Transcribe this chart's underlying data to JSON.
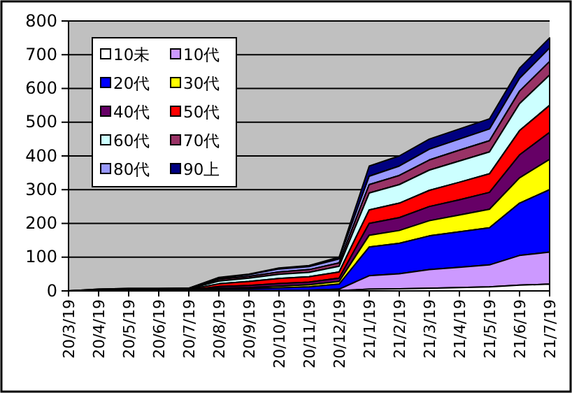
{
  "chart_data": {
    "type": "area",
    "stacked": true,
    "categories": [
      "20/3/19",
      "20/4/19",
      "20/5/19",
      "20/6/19",
      "20/7/19",
      "20/8/19",
      "20/9/19",
      "20/10/19",
      "20/11/19",
      "20/12/19",
      "21/1/19",
      "21/2/19",
      "21/3/19",
      "21/4/19",
      "21/5/19",
      "21/6/19",
      "21/7/19"
    ],
    "series": [
      {
        "name": "10未",
        "color": "#ffffff",
        "values": [
          0,
          0,
          0,
          0,
          0,
          0,
          0,
          0,
          0,
          1,
          5,
          6,
          8,
          10,
          12,
          17,
          20
        ]
      },
      {
        "name": "10代",
        "color": "#cc99ff",
        "values": [
          0,
          0,
          0,
          0,
          0,
          1,
          1,
          1,
          2,
          4,
          40,
          45,
          55,
          60,
          65,
          88,
          95
        ]
      },
      {
        "name": "20代",
        "color": "#0000ff",
        "values": [
          0,
          0,
          1,
          1,
          1,
          4,
          5,
          8,
          10,
          15,
          85,
          90,
          100,
          105,
          110,
          155,
          185
        ]
      },
      {
        "name": "30代",
        "color": "#ffff00",
        "values": [
          0,
          0,
          0,
          0,
          0,
          3,
          4,
          5,
          6,
          8,
          35,
          38,
          45,
          50,
          55,
          75,
          90
        ]
      },
      {
        "name": "40代",
        "color": "#660066",
        "values": [
          0,
          0,
          1,
          1,
          1,
          5,
          6,
          8,
          8,
          10,
          35,
          38,
          42,
          45,
          50,
          68,
          80
        ]
      },
      {
        "name": "50代",
        "color": "#ff0000",
        "values": [
          0,
          1,
          1,
          1,
          2,
          8,
          12,
          15,
          16,
          18,
          40,
          43,
          48,
          52,
          55,
          72,
          80
        ]
      },
      {
        "name": "60代",
        "color": "#ccffff",
        "values": [
          0,
          2,
          2,
          2,
          2,
          8,
          10,
          12,
          13,
          17,
          50,
          55,
          60,
          63,
          65,
          80,
          90
        ]
      },
      {
        "name": "70代",
        "color": "#993366",
        "values": [
          0,
          1,
          1,
          1,
          1,
          5,
          5,
          7,
          8,
          10,
          25,
          27,
          30,
          32,
          33,
          37,
          40
        ]
      },
      {
        "name": "80代",
        "color": "#9999ff",
        "values": [
          0,
          1,
          1,
          1,
          1,
          4,
          5,
          9,
          9,
          12,
          25,
          28,
          32,
          33,
          35,
          38,
          40
        ]
      },
      {
        "name": "90上",
        "color": "#000080",
        "values": [
          0,
          0,
          0,
          0,
          0,
          2,
          2,
          3,
          3,
          5,
          30,
          30,
          30,
          30,
          30,
          30,
          30
        ]
      }
    ],
    "ylim": [
      0,
      800
    ],
    "yticks": [
      0,
      100,
      200,
      300,
      400,
      500,
      600,
      700,
      800
    ],
    "grid": "y",
    "legend": "top left"
  }
}
